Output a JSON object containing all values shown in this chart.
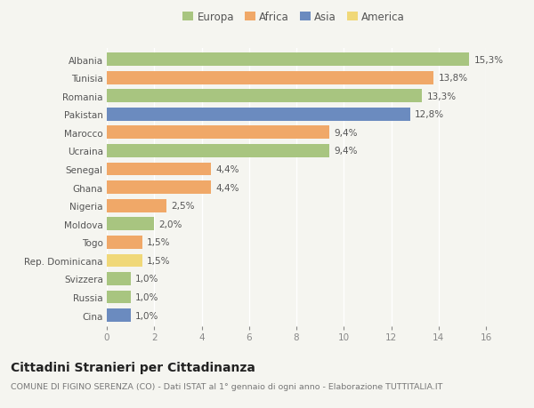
{
  "countries": [
    "Albania",
    "Tunisia",
    "Romania",
    "Pakistan",
    "Marocco",
    "Ucraina",
    "Senegal",
    "Ghana",
    "Nigeria",
    "Moldova",
    "Togo",
    "Rep. Dominicana",
    "Svizzera",
    "Russia",
    "Cina"
  ],
  "values": [
    15.3,
    13.8,
    13.3,
    12.8,
    9.4,
    9.4,
    4.4,
    4.4,
    2.5,
    2.0,
    1.5,
    1.5,
    1.0,
    1.0,
    1.0
  ],
  "labels": [
    "15,3%",
    "13,8%",
    "13,3%",
    "12,8%",
    "9,4%",
    "9,4%",
    "4,4%",
    "4,4%",
    "2,5%",
    "2,0%",
    "1,5%",
    "1,5%",
    "1,0%",
    "1,0%",
    "1,0%"
  ],
  "colors": [
    "#a8c580",
    "#f0a868",
    "#a8c580",
    "#6b8bbf",
    "#f0a868",
    "#a8c580",
    "#f0a868",
    "#f0a868",
    "#f0a868",
    "#a8c580",
    "#f0a868",
    "#f0d878",
    "#a8c580",
    "#a8c580",
    "#6b8bbf"
  ],
  "legend_labels": [
    "Europa",
    "Africa",
    "Asia",
    "America"
  ],
  "legend_colors": [
    "#a8c580",
    "#f0a868",
    "#6b8bbf",
    "#f0d878"
  ],
  "xlim": [
    0,
    16
  ],
  "xticks": [
    0,
    2,
    4,
    6,
    8,
    10,
    12,
    14,
    16
  ],
  "title": "Cittadini Stranieri per Cittadinanza",
  "subtitle": "COMUNE DI FIGINO SERENZA (CO) - Dati ISTAT al 1° gennaio di ogni anno - Elaborazione TUTTITALIA.IT",
  "background_color": "#f5f5f0",
  "bar_height": 0.72,
  "label_fontsize": 7.5,
  "tick_fontsize": 7.5,
  "title_fontsize": 10,
  "subtitle_fontsize": 6.8,
  "legend_fontsize": 8.5
}
